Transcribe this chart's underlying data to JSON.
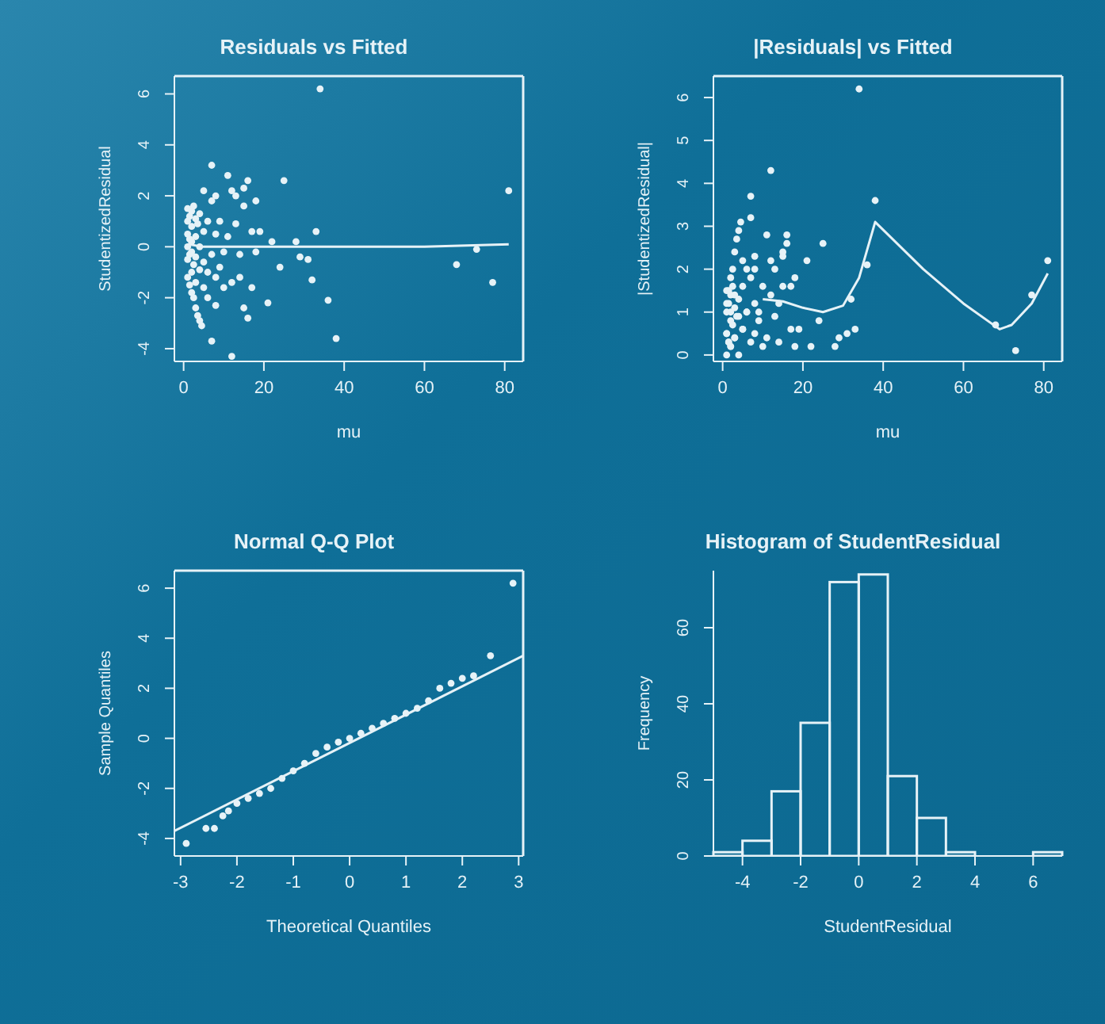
{
  "chart_data": [
    {
      "type": "scatter",
      "title": "Residuals vs Fitted",
      "xlabel": "mu",
      "ylabel": "StudentizedResidual",
      "xlim": [
        -2.3,
        84.6
      ],
      "xticks": [
        0,
        20,
        40,
        60,
        80
      ],
      "ylim": [
        -4.5,
        6.7
      ],
      "yticks": [
        -4,
        -2,
        0,
        2,
        4,
        6
      ],
      "series": [
        {
          "type": "scatter",
          "color": "#e6f2f7",
          "marker": "circle",
          "x": [
            1,
            1,
            1,
            1,
            1,
            1,
            1.5,
            1.5,
            1.5,
            1.5,
            2,
            2,
            2,
            2,
            2,
            2,
            2.5,
            2.5,
            2.5,
            3,
            3,
            3,
            3,
            3,
            3.5,
            3.5,
            4,
            4,
            4,
            4,
            4.5,
            5,
            5,
            5,
            5,
            6,
            6,
            6,
            7,
            7,
            7,
            7,
            8,
            8,
            8,
            8,
            9,
            9,
            10,
            10,
            11,
            11,
            12,
            12,
            12,
            13,
            13,
            14,
            14,
            15,
            15,
            15,
            16,
            16,
            17,
            17,
            18,
            18,
            19,
            21,
            22,
            24,
            25,
            28,
            29,
            31,
            32,
            33,
            34,
            36,
            38,
            68,
            73,
            77,
            81
          ],
          "values": [
            1.5,
            1.0,
            0.5,
            0,
            -0.5,
            -1.2,
            1.2,
            0.3,
            -0.3,
            -1.5,
            1.4,
            0.8,
            0.2,
            -0.2,
            -1.0,
            -1.8,
            1.6,
            -0.7,
            -2.0,
            1.1,
            0.4,
            -0.4,
            -1.4,
            -2.4,
            0.9,
            -2.7,
            1.3,
            0,
            -0.9,
            -2.9,
            -3.1,
            2.2,
            0.6,
            -0.6,
            -1.6,
            1.0,
            -1.0,
            -2.0,
            3.2,
            1.8,
            -0.3,
            -3.7,
            2.0,
            0.5,
            -1.2,
            -2.3,
            1.0,
            -0.8,
            -0.2,
            -1.6,
            2.8,
            0.4,
            2.2,
            -1.4,
            -4.3,
            2.0,
            0.9,
            -0.3,
            -1.2,
            2.3,
            1.6,
            -2.4,
            2.6,
            -2.8,
            -1.6,
            0.6,
            1.8,
            -0.2,
            0.6,
            -2.2,
            0.2,
            -0.8,
            2.6,
            0.2,
            -0.4,
            -0.5,
            -1.3,
            0.6,
            6.2,
            -2.1,
            -3.6,
            -0.7,
            -0.1,
            -1.4,
            2.2
          ]
        },
        {
          "type": "line",
          "color": "#e6f2f7",
          "x": [
            1,
            5,
            20,
            40,
            60,
            81
          ],
          "values": [
            0.1,
            0,
            0,
            0,
            0,
            0.1
          ]
        }
      ]
    },
    {
      "type": "scatter",
      "title": "|Residuals| vs Fitted",
      "xlabel": "mu",
      "ylabel": "|StudentizedResidual|",
      "xlim": [
        -2.3,
        84.6
      ],
      "xticks": [
        0,
        20,
        40,
        60,
        80
      ],
      "ylim": [
        -0.15,
        6.5
      ],
      "yticks": [
        0,
        1,
        2,
        3,
        4,
        5,
        6
      ],
      "series": [
        {
          "type": "scatter",
          "color": "#e6f2f7",
          "marker": "circle",
          "x": [
            1,
            1,
            1,
            1,
            1,
            1,
            1.5,
            1.5,
            1.5,
            1.5,
            2,
            2,
            2,
            2,
            2,
            2,
            2.5,
            2.5,
            2.5,
            3,
            3,
            3,
            3,
            3,
            3.5,
            3.5,
            4,
            4,
            4,
            4,
            4.5,
            5,
            5,
            5,
            5,
            6,
            6,
            6,
            7,
            7,
            7,
            7,
            8,
            8,
            8,
            8,
            9,
            9,
            10,
            10,
            11,
            11,
            12,
            12,
            12,
            13,
            13,
            14,
            14,
            15,
            15,
            15,
            16,
            16,
            17,
            17,
            18,
            18,
            19,
            21,
            22,
            24,
            25,
            28,
            29,
            31,
            32,
            33,
            34,
            36,
            38,
            68,
            73,
            77,
            81
          ],
          "values": [
            1.5,
            1.0,
            0.5,
            0,
            0.5,
            1.2,
            1.2,
            0.3,
            0.3,
            1.5,
            1.4,
            0.8,
            0.2,
            0.2,
            1.0,
            1.8,
            1.6,
            0.7,
            2.0,
            1.1,
            0.4,
            0.4,
            1.4,
            2.4,
            0.9,
            2.7,
            1.3,
            0,
            0.9,
            2.9,
            3.1,
            2.2,
            0.6,
            0.6,
            1.6,
            1.0,
            1.0,
            2.0,
            3.2,
            1.8,
            0.3,
            3.7,
            2.0,
            0.5,
            1.2,
            2.3,
            1.0,
            0.8,
            0.2,
            1.6,
            2.8,
            0.4,
            2.2,
            1.4,
            4.3,
            2.0,
            0.9,
            0.3,
            1.2,
            2.3,
            1.6,
            2.4,
            2.6,
            2.8,
            1.6,
            0.6,
            1.8,
            0.2,
            0.6,
            2.2,
            0.2,
            0.8,
            2.6,
            0.2,
            0.4,
            0.5,
            1.3,
            0.6,
            6.2,
            2.1,
            3.6,
            0.7,
            0.1,
            1.4,
            2.2
          ]
        },
        {
          "type": "line",
          "color": "#e6f2f7",
          "x": [
            10,
            15,
            20,
            25,
            30,
            34,
            38,
            50,
            60,
            69,
            72,
            77,
            81
          ],
          "values": [
            1.3,
            1.25,
            1.1,
            1.0,
            1.15,
            1.8,
            3.1,
            2.0,
            1.2,
            0.6,
            0.7,
            1.2,
            1.9
          ]
        }
      ]
    },
    {
      "type": "scatter",
      "title": "Normal Q-Q Plot",
      "xlabel": "Theoretical Quantiles",
      "ylabel": "Sample Quantiles",
      "xlim": [
        -3.11,
        3.08
      ],
      "xticks": [
        -3,
        -2,
        -1,
        0,
        1,
        2,
        3
      ],
      "ylim": [
        -4.7,
        6.7
      ],
      "yticks": [
        -4,
        -2,
        0,
        2,
        4,
        6
      ],
      "series": [
        {
          "type": "scatter",
          "color": "#e6f2f7",
          "marker": "circle",
          "x": [
            -2.9,
            -2.55,
            -2.4,
            -2.25,
            -2.15,
            -2.0,
            -1.8,
            -1.6,
            -1.4,
            -1.2,
            -1.0,
            -0.8,
            -0.6,
            -0.4,
            -0.2,
            0,
            0.2,
            0.4,
            0.6,
            0.8,
            1.0,
            1.2,
            1.4,
            1.6,
            1.8,
            2.0,
            2.2,
            2.5,
            2.9
          ],
          "values": [
            -4.2,
            -3.6,
            -3.6,
            -3.1,
            -2.9,
            -2.6,
            -2.4,
            -2.2,
            -2.0,
            -1.6,
            -1.3,
            -1.0,
            -0.6,
            -0.35,
            -0.15,
            0,
            0.2,
            0.4,
            0.6,
            0.8,
            1.0,
            1.2,
            1.5,
            2.0,
            2.2,
            2.4,
            2.5,
            3.3,
            6.2
          ]
        },
        {
          "type": "line",
          "color": "#e6f2f7",
          "x": [
            -3.11,
            3.08
          ],
          "values": [
            -3.7,
            3.3
          ]
        }
      ]
    },
    {
      "type": "histogram",
      "title": "Histogram of StudentResidual",
      "xlabel": "StudentResidual",
      "ylabel": "Frequency",
      "xlim": [
        -5,
        7
      ],
      "xticks": [
        -4,
        -2,
        0,
        2,
        4,
        6
      ],
      "ylim": [
        0,
        75
      ],
      "yticks": [
        0,
        20,
        40,
        60
      ],
      "color": "#e6f2f7",
      "bins": [
        -5,
        -4,
        -3,
        -2,
        -1,
        0,
        1,
        2,
        3,
        4,
        5,
        6,
        7
      ],
      "values": [
        1,
        4,
        17,
        35,
        72,
        74,
        21,
        10,
        1,
        0,
        0,
        1
      ]
    }
  ]
}
